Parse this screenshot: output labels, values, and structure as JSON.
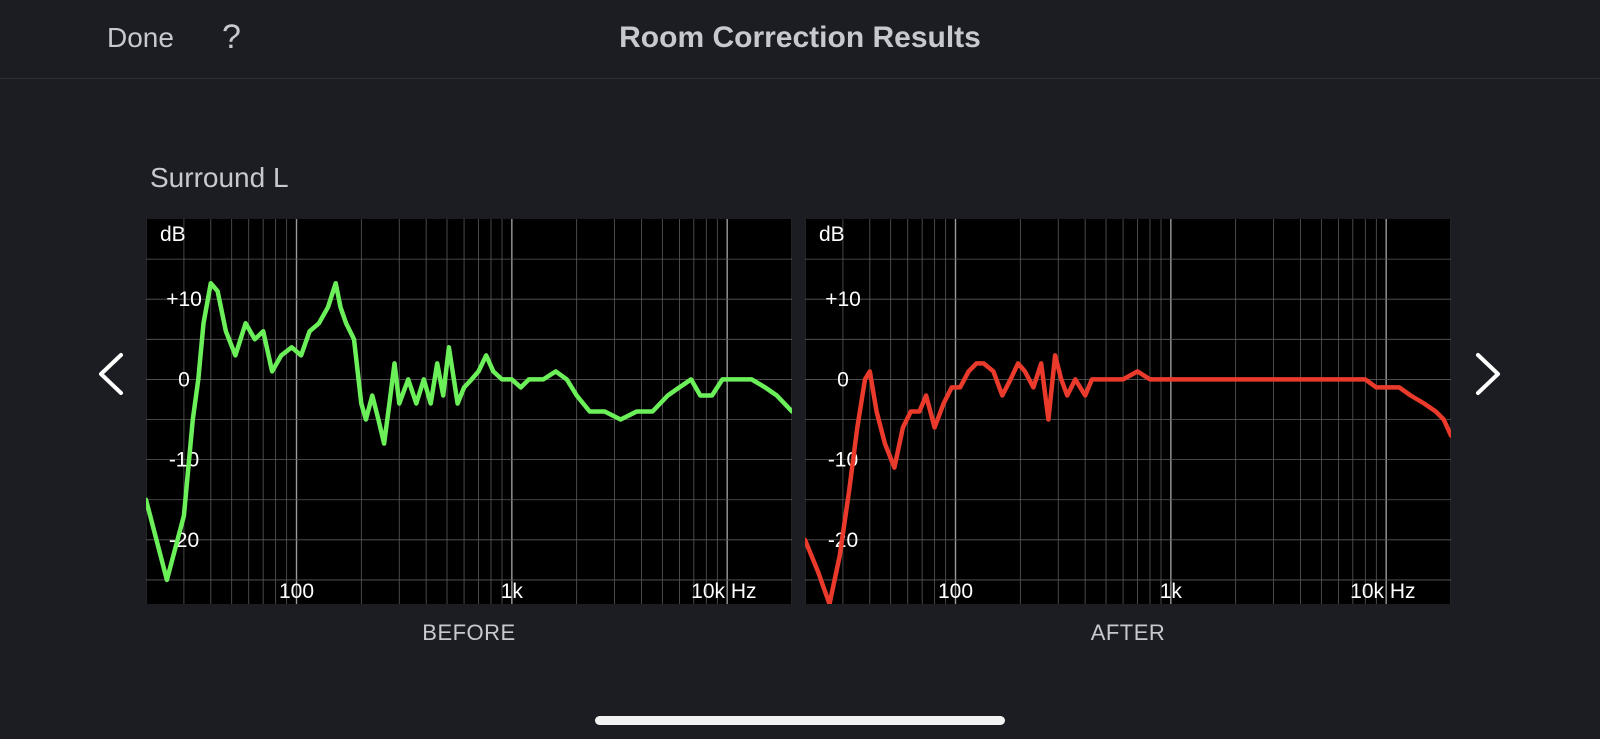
{
  "header": {
    "done_label": "Done",
    "help_label": "?",
    "title": "Room Correction Results"
  },
  "speaker": {
    "name": "Surround L"
  },
  "colors": {
    "before_line": "#6cf05a",
    "after_line": "#ea3a2b",
    "grid": "#5a5a5a",
    "background": "#1c1d22"
  },
  "nav": {
    "prev_icon": "chevron-left-icon",
    "next_icon": "chevron-right-icon"
  },
  "chart_data": [
    {
      "type": "line",
      "title": "BEFORE",
      "xlabel": "Hz",
      "ylabel": "dB",
      "x_scale": "log",
      "xlim": [
        20,
        20000
      ],
      "ylim": [
        -28,
        20
      ],
      "grid": true,
      "x_ticks": [
        {
          "value": 100,
          "label": "100"
        },
        {
          "value": 1000,
          "label": "1k"
        },
        {
          "value": 10000,
          "label": "10k Hz"
        }
      ],
      "y_ticks": [
        {
          "value": 10,
          "label": "+10"
        },
        {
          "value": 0,
          "label": "0"
        },
        {
          "value": -10,
          "label": "-10"
        },
        {
          "value": -20,
          "label": "-20"
        }
      ],
      "series": [
        {
          "color": "#6cf05a",
          "points": [
            [
              20,
              -15
            ],
            [
              25,
              -25
            ],
            [
              30,
              -17
            ],
            [
              33,
              -5
            ],
            [
              35,
              0
            ],
            [
              37,
              7
            ],
            [
              40,
              12
            ],
            [
              43,
              11
            ],
            [
              47,
              6
            ],
            [
              52,
              3
            ],
            [
              58,
              7
            ],
            [
              64,
              5
            ],
            [
              70,
              6
            ],
            [
              77,
              1
            ],
            [
              85,
              3
            ],
            [
              95,
              4
            ],
            [
              105,
              3
            ],
            [
              115,
              6
            ],
            [
              127,
              7
            ],
            [
              140,
              9
            ],
            [
              152,
              12
            ],
            [
              160,
              9
            ],
            [
              170,
              7
            ],
            [
              185,
              5
            ],
            [
              200,
              -3
            ],
            [
              210,
              -5
            ],
            [
              225,
              -2
            ],
            [
              240,
              -5
            ],
            [
              255,
              -8
            ],
            [
              270,
              -3
            ],
            [
              285,
              2
            ],
            [
              300,
              -3
            ],
            [
              330,
              0
            ],
            [
              360,
              -3
            ],
            [
              390,
              0
            ],
            [
              420,
              -3
            ],
            [
              450,
              2
            ],
            [
              480,
              -2
            ],
            [
              510,
              4
            ],
            [
              560,
              -3
            ],
            [
              600,
              -1
            ],
            [
              650,
              0
            ],
            [
              700,
              1
            ],
            [
              760,
              3
            ],
            [
              820,
              1
            ],
            [
              900,
              0
            ],
            [
              1000,
              0
            ],
            [
              1100,
              -1
            ],
            [
              1200,
              0
            ],
            [
              1400,
              0
            ],
            [
              1600,
              1
            ],
            [
              1800,
              0
            ],
            [
              2000,
              -2
            ],
            [
              2300,
              -4
            ],
            [
              2700,
              -4
            ],
            [
              3200,
              -5
            ],
            [
              3800,
              -4
            ],
            [
              4500,
              -4
            ],
            [
              5300,
              -2
            ],
            [
              6000,
              -1
            ],
            [
              6800,
              0
            ],
            [
              7500,
              -2
            ],
            [
              8500,
              -2
            ],
            [
              9500,
              0
            ],
            [
              10500,
              0
            ],
            [
              11500,
              0
            ],
            [
              13000,
              0
            ],
            [
              15000,
              -1
            ],
            [
              17000,
              -2
            ],
            [
              20000,
              -4
            ]
          ]
        }
      ]
    },
    {
      "type": "line",
      "title": "AFTER",
      "xlabel": "Hz",
      "ylabel": "dB",
      "x_scale": "log",
      "xlim": [
        20,
        20000
      ],
      "ylim": [
        -28,
        20
      ],
      "grid": true,
      "x_ticks": [
        {
          "value": 100,
          "label": "100"
        },
        {
          "value": 1000,
          "label": "1k"
        },
        {
          "value": 10000,
          "label": "10k Hz"
        }
      ],
      "y_ticks": [
        {
          "value": 10,
          "label": "+10"
        },
        {
          "value": 0,
          "label": "0"
        },
        {
          "value": -10,
          "label": "-10"
        },
        {
          "value": -20,
          "label": "-20"
        }
      ],
      "series": [
        {
          "color": "#ea3a2b",
          "points": [
            [
              20,
              -20
            ],
            [
              23,
              -24
            ],
            [
              26,
              -28
            ],
            [
              29,
              -22
            ],
            [
              32,
              -14
            ],
            [
              35,
              -6
            ],
            [
              38,
              0
            ],
            [
              40,
              1
            ],
            [
              43,
              -4
            ],
            [
              47,
              -8
            ],
            [
              52,
              -11
            ],
            [
              57,
              -6
            ],
            [
              62,
              -4
            ],
            [
              68,
              -4
            ],
            [
              73,
              -2
            ],
            [
              80,
              -6
            ],
            [
              88,
              -3
            ],
            [
              96,
              -1
            ],
            [
              105,
              -1
            ],
            [
              115,
              1
            ],
            [
              125,
              2
            ],
            [
              135,
              2
            ],
            [
              150,
              1
            ],
            [
              165,
              -2
            ],
            [
              180,
              0
            ],
            [
              195,
              2
            ],
            [
              210,
              1
            ],
            [
              230,
              -1
            ],
            [
              250,
              2
            ],
            [
              270,
              -5
            ],
            [
              290,
              3
            ],
            [
              310,
              0
            ],
            [
              330,
              -2
            ],
            [
              360,
              0
            ],
            [
              400,
              -2
            ],
            [
              430,
              0
            ],
            [
              470,
              0
            ],
            [
              520,
              0
            ],
            [
              600,
              0
            ],
            [
              700,
              1
            ],
            [
              800,
              0
            ],
            [
              900,
              0
            ],
            [
              1000,
              0
            ],
            [
              1200,
              0
            ],
            [
              1500,
              0
            ],
            [
              2000,
              0
            ],
            [
              2500,
              0
            ],
            [
              3000,
              0
            ],
            [
              3500,
              0
            ],
            [
              4000,
              0
            ],
            [
              5000,
              0
            ],
            [
              6000,
              0
            ],
            [
              7000,
              0
            ],
            [
              8000,
              0
            ],
            [
              9000,
              -1
            ],
            [
              10000,
              -1
            ],
            [
              11500,
              -1
            ],
            [
              13000,
              -2
            ],
            [
              15000,
              -3
            ],
            [
              17000,
              -4
            ],
            [
              18500,
              -5
            ],
            [
              20000,
              -7
            ]
          ]
        }
      ]
    }
  ]
}
